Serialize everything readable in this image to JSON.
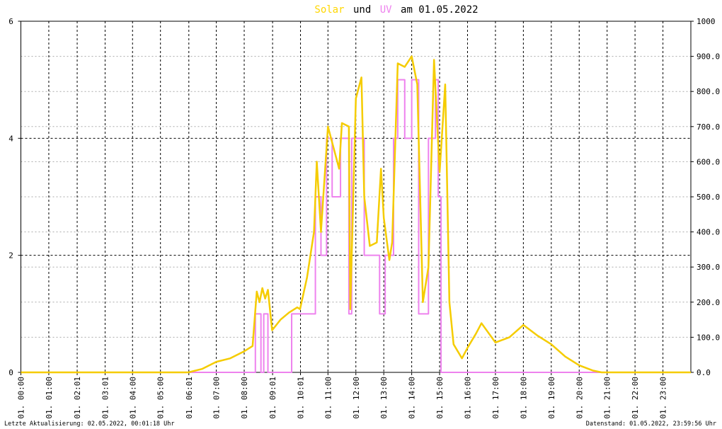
{
  "chart_data": {
    "type": "line",
    "title": {
      "solar": "Solar",
      "und": "und",
      "uv": "UV",
      "date": "am 01.05.2022"
    },
    "footer_left": "Letzte Aktualisierung: 02.05.2022, 00:01:18 Uhr",
    "footer_right": "Datenstand: 01.05.2022, 23:59:56 Uhr",
    "xlim": [
      0,
      24
    ],
    "xticks": [
      {
        "value": 0,
        "label": "01. 00:00"
      },
      {
        "value": 1,
        "label": "01. 01:00"
      },
      {
        "value": 2.0167,
        "label": "01. 02:01"
      },
      {
        "value": 3.0167,
        "label": "01. 03:01"
      },
      {
        "value": 4,
        "label": "01. 04:00"
      },
      {
        "value": 5,
        "label": "01. 05:00"
      },
      {
        "value": 6.0167,
        "label": "01. 06:01"
      },
      {
        "value": 7,
        "label": "01. 07:00"
      },
      {
        "value": 8,
        "label": "01. 08:00"
      },
      {
        "value": 9.0167,
        "label": "01. 09:01"
      },
      {
        "value": 10.0167,
        "label": "01. 10:01"
      },
      {
        "value": 11,
        "label": "01. 11:00"
      },
      {
        "value": 12,
        "label": "01. 12:00"
      },
      {
        "value": 13,
        "label": "01. 13:00"
      },
      {
        "value": 14,
        "label": "01. 14:00"
      },
      {
        "value": 15,
        "label": "01. 15:00"
      },
      {
        "value": 16,
        "label": "01. 16:00"
      },
      {
        "value": 17,
        "label": "01. 17:00"
      },
      {
        "value": 18,
        "label": "01. 18:00"
      },
      {
        "value": 19,
        "label": "01. 19:00"
      },
      {
        "value": 20,
        "label": "01. 20:00"
      },
      {
        "value": 21,
        "label": "01. 21:00"
      },
      {
        "value": 22,
        "label": "01. 22:00"
      },
      {
        "value": 23,
        "label": "01. 23:00"
      }
    ],
    "ylim": [
      0,
      6
    ],
    "yticks": [
      0,
      2,
      4,
      6
    ],
    "y2lim": [
      0,
      1000
    ],
    "y2ticks": [
      {
        "value": 0,
        "label": "0.0"
      },
      {
        "value": 100,
        "label": "100.0"
      },
      {
        "value": 200,
        "label": "200.0"
      },
      {
        "value": 300,
        "label": "300.0"
      },
      {
        "value": 400,
        "label": "400.0"
      },
      {
        "value": 500,
        "label": "500.0"
      },
      {
        "value": 600,
        "label": "600.0"
      },
      {
        "value": 700,
        "label": "700.0"
      },
      {
        "value": 800,
        "label": "800.0"
      },
      {
        "value": 900,
        "label": "900.0"
      },
      1000
    ],
    "grid": true,
    "series": [
      {
        "name": "UV",
        "color": "#ee82ee",
        "axis": "y",
        "x": [
          0,
          8.4,
          8.4,
          8.6,
          8.6,
          8.7,
          8.7,
          8.85,
          8.85,
          9.7,
          9.7,
          10.55,
          10.55,
          10.75,
          10.75,
          10.95,
          10.95,
          11.15,
          11.15,
          11.45,
          11.45,
          11.75,
          11.75,
          11.85,
          11.85,
          12.3,
          12.3,
          12.85,
          12.85,
          13.05,
          13.05,
          13.35,
          13.35,
          13.5,
          13.5,
          13.75,
          13.75,
          14.0,
          14.0,
          14.25,
          14.25,
          14.6,
          14.6,
          14.85,
          14.85,
          14.95,
          14.95,
          15.05,
          15.05,
          24
        ],
        "values": [
          0,
          0,
          1,
          1,
          0,
          0,
          1,
          1,
          0,
          0,
          1,
          1,
          3,
          3,
          2,
          2,
          4,
          4,
          3,
          3,
          4,
          4,
          1,
          1,
          4,
          4,
          2,
          2,
          1,
          1,
          2,
          2,
          4,
          4,
          5,
          5,
          4,
          4,
          5,
          5,
          1,
          1,
          4,
          4,
          5,
          5,
          3,
          3,
          0,
          0
        ]
      },
      {
        "name": "Solar",
        "color": "#f5cc00",
        "axis": "y2",
        "x": [
          0,
          6.0,
          6.5,
          7.0,
          7.5,
          8.0,
          8.3,
          8.45,
          8.55,
          8.65,
          8.75,
          8.85,
          9.0,
          9.3,
          9.6,
          9.9,
          10.0,
          10.25,
          10.5,
          10.6,
          10.75,
          11.0,
          11.2,
          11.4,
          11.5,
          11.75,
          11.8,
          12.0,
          12.2,
          12.3,
          12.5,
          12.75,
          12.9,
          13.0,
          13.2,
          13.3,
          13.5,
          13.75,
          14.0,
          14.2,
          14.4,
          14.6,
          14.8,
          15.0,
          15.2,
          15.35,
          15.5,
          15.8,
          16.0,
          16.3,
          16.5,
          17.0,
          17.5,
          18.0,
          18.5,
          19.0,
          19.5,
          20.0,
          20.5,
          20.8,
          24
        ],
        "values": [
          0,
          0,
          10,
          30,
          40,
          60,
          75,
          230,
          200,
          240,
          210,
          235,
          120,
          150,
          170,
          185,
          180,
          270,
          400,
          600,
          400,
          700,
          640,
          580,
          710,
          700,
          180,
          780,
          840,
          500,
          360,
          370,
          580,
          440,
          320,
          370,
          880,
          870,
          900,
          820,
          200,
          300,
          890,
          570,
          820,
          200,
          80,
          40,
          70,
          110,
          140,
          85,
          100,
          135,
          105,
          80,
          45,
          20,
          5,
          0,
          0
        ]
      }
    ]
  }
}
